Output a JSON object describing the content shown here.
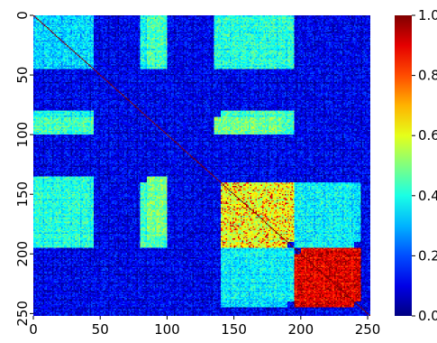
{
  "chart_data": {
    "type": "heatmap",
    "title": "",
    "xlabel": "",
    "ylabel": "",
    "matrix_size": 252,
    "x_range": [
      0,
      252
    ],
    "y_range": [
      0,
      252
    ],
    "x_ticks": [
      0,
      50,
      100,
      150,
      200,
      250
    ],
    "y_ticks": [
      0,
      50,
      100,
      150,
      200,
      250
    ],
    "y_axis_direction": "top-to-bottom",
    "colorbar": {
      "min": 0.0,
      "max": 1.0,
      "colormap": "jet",
      "ticks": [
        "0.0",
        "0.2",
        "0.4",
        "0.6",
        "0.8",
        "1.0"
      ]
    },
    "blocks": [
      {
        "rows": [
          0,
          252
        ],
        "cols": [
          0,
          252
        ],
        "value": 0.12
      },
      {
        "rows": [
          0,
          45
        ],
        "cols": [
          0,
          45
        ],
        "value": 0.35
      },
      {
        "rows": [
          0,
          45
        ],
        "cols": [
          85,
          100
        ],
        "value": 0.45
      },
      {
        "rows": [
          0,
          45
        ],
        "cols": [
          140,
          195
        ],
        "value": 0.42
      },
      {
        "rows": [
          80,
          100
        ],
        "cols": [
          0,
          45
        ],
        "value": 0.4
      },
      {
        "rows": [
          80,
          100
        ],
        "cols": [
          140,
          195
        ],
        "value": 0.45
      },
      {
        "rows": [
          135,
          185
        ],
        "cols": [
          0,
          45
        ],
        "value": 0.42
      },
      {
        "rows": [
          135,
          185
        ],
        "cols": [
          85,
          100
        ],
        "value": 0.5
      },
      {
        "rows": [
          140,
          190
        ],
        "cols": [
          140,
          195
        ],
        "value": 0.6
      },
      {
        "rows": [
          195,
          240
        ],
        "cols": [
          140,
          195
        ],
        "value": 0.38
      },
      {
        "rows": [
          140,
          190
        ],
        "cols": [
          195,
          245
        ],
        "value": 0.35
      },
      {
        "rows": [
          195,
          240
        ],
        "cols": [
          200,
          245
        ],
        "value": 0.92
      }
    ],
    "diagonal_value": 1.0
  },
  "colors": {
    "low": "#00008f",
    "high": "#800000"
  }
}
